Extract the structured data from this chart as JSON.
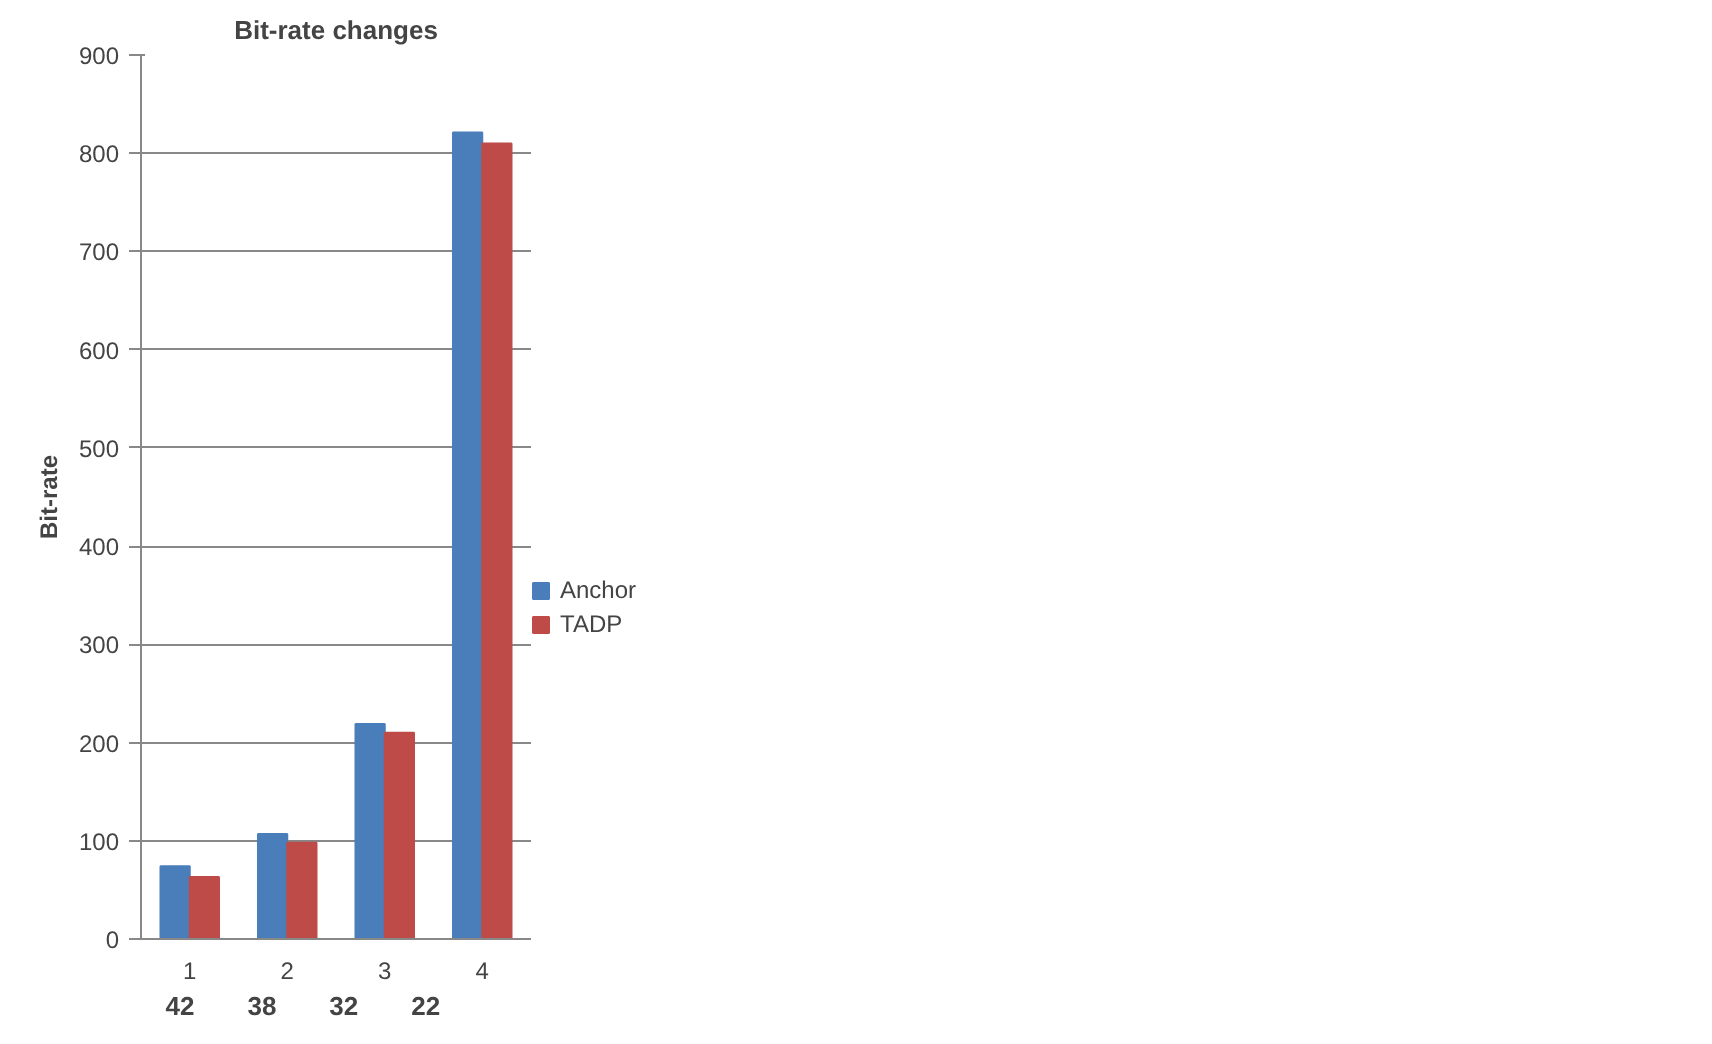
{
  "chart_data": {
    "type": "bar",
    "title": "Bit-rate changes",
    "ylabel": "Bit-rate",
    "categories": [
      "1",
      "2",
      "3",
      "4"
    ],
    "series": [
      {
        "name": "Anchor",
        "color": "#4a7ebb",
        "values": [
          74,
          107,
          219,
          821
        ]
      },
      {
        "name": "TADP",
        "color": "#be4b48",
        "values": [
          63,
          98,
          210,
          810
        ]
      }
    ],
    "ylim": [
      0,
      900
    ],
    "yticks": [
      0,
      100,
      200,
      300,
      400,
      500,
      600,
      700,
      800,
      900
    ],
    "grid": "y",
    "legend": "right",
    "annotations": [
      "42",
      "38",
      "32",
      "22"
    ]
  }
}
